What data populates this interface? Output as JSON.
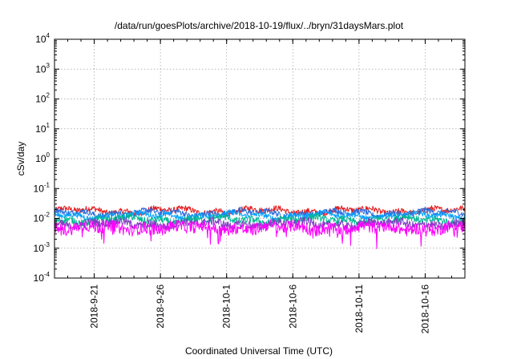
{
  "chart_data": {
    "type": "line",
    "title": "/data/run/goesPlots/archive/2018-10-19/flux/../bryn/31daysMars.plot",
    "xlabel": "Coordinated Universal Time (UTC)",
    "ylabel": "cSv/day",
    "yscale": "log",
    "ylim_exp": [
      -4,
      4
    ],
    "y_tick_exponents": [
      -4,
      -3,
      -2,
      -1,
      0,
      1,
      2,
      3,
      4
    ],
    "y_tick_base": "10",
    "x_tick_labels": [
      "2018-9-21",
      "2018-9-26",
      "2018-10-1",
      "2018-10-6",
      "2018-10-11",
      "2018-10-16"
    ],
    "x_tick_day_offsets": [
      3,
      8,
      13,
      18,
      23,
      28
    ],
    "x_days_range": [
      0,
      31
    ],
    "grid": true,
    "legend": "none",
    "series": [
      {
        "color": "#e41a1c",
        "level": 0.018,
        "amplitude": 0.1
      },
      {
        "color": "#2b6fdc",
        "level": 0.015,
        "amplitude": 0.1
      },
      {
        "color": "#00a0ff",
        "level": 0.0125,
        "amplitude": 0.09
      },
      {
        "color": "#00b894",
        "level": 0.009,
        "amplitude": 0.12
      },
      {
        "color": "#7f3fbf",
        "level": 0.0065,
        "amplitude": 0.14
      },
      {
        "color": "#ff00ff",
        "level": 0.0048,
        "amplitude": 0.2
      }
    ]
  }
}
